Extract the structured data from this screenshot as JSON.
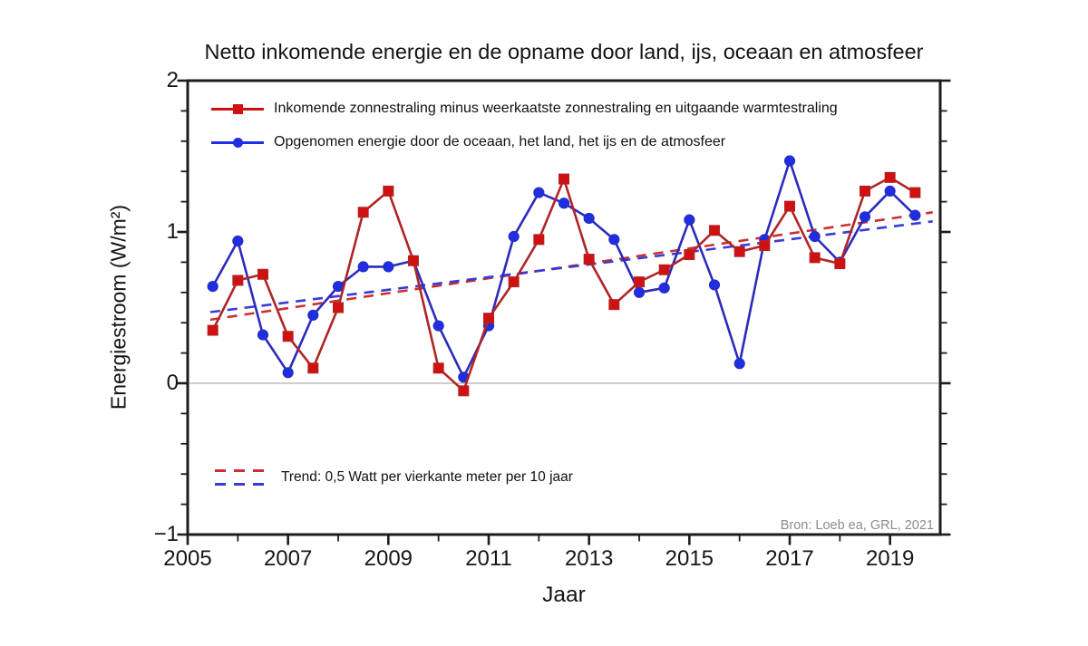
{
  "chart_data": {
    "type": "line",
    "title": "Netto inkomende energie en de opname door land, ijs, oceaan en atmosfeer",
    "xlabel": "Jaar",
    "ylabel": "Energiestroom (W/m²)",
    "xlim": [
      2005,
      2020
    ],
    "ylim": [
      -1,
      2
    ],
    "x_major_ticks": [
      2005,
      2007,
      2009,
      2011,
      2013,
      2015,
      2017,
      2019
    ],
    "x_tick_labels": [
      "2005",
      "2007",
      "2009",
      "2011",
      "2013",
      "2015",
      "2017",
      "2019"
    ],
    "x_minor_ticks": [
      2006,
      2008,
      2010,
      2012,
      2014,
      2016,
      2018
    ],
    "y_major_ticks": [
      -1,
      0,
      1,
      2
    ],
    "y_tick_labels": [
      "−1",
      "0",
      "1",
      "2"
    ],
    "y_minor_step": 0.2,
    "zero_line": true,
    "grid": "off",
    "legend_position": "top-left-inside",
    "x": [
      2005.5,
      2006.0,
      2006.5,
      2007.0,
      2007.5,
      2008.0,
      2008.5,
      2009.0,
      2009.5,
      2010.0,
      2010.5,
      2011.0,
      2011.5,
      2012.0,
      2012.5,
      2013.0,
      2013.5,
      2014.0,
      2014.5,
      2015.0,
      2015.5,
      2016.0,
      2016.5,
      2017.0,
      2017.5,
      2018.0,
      2018.5,
      2019.0,
      2019.5
    ],
    "series": [
      {
        "name": "Inkomende zonnestraling minus weerkaatste zonnestraling en uitgaande warmtestraling",
        "marker": "square",
        "line_color": "#b02525",
        "marker_color": "#cf1111",
        "values": [
          0.35,
          0.68,
          0.72,
          0.31,
          0.1,
          0.5,
          1.13,
          1.27,
          0.81,
          0.1,
          -0.05,
          0.43,
          0.67,
          0.95,
          1.35,
          0.82,
          0.52,
          0.67,
          0.75,
          0.85,
          1.01,
          0.87,
          0.91,
          1.17,
          0.83,
          0.79,
          1.27,
          1.36,
          1.26
        ]
      },
      {
        "name": "Opgenomen energie door de oceaan, het land, het ijs en de atmosfeer",
        "marker": "circle",
        "line_color": "#2b2bbd",
        "marker_color": "#1e2ee0",
        "values": [
          0.64,
          0.94,
          0.32,
          0.07,
          0.45,
          0.64,
          0.77,
          0.77,
          0.81,
          0.38,
          0.04,
          0.38,
          0.97,
          1.26,
          1.19,
          1.09,
          0.95,
          0.6,
          0.63,
          1.08,
          0.65,
          0.13,
          0.95,
          1.47,
          0.97,
          0.8,
          1.1,
          1.27,
          1.11
        ]
      }
    ],
    "trend": {
      "label": "Trend: 0,5 Watt per vierkante meter per 10 jaar",
      "value_per_decade": "0,5",
      "lines": [
        {
          "name": "trend-straling",
          "color": "#cc2f2f",
          "x": [
            2005.45,
            2019.85
          ],
          "y": [
            0.42,
            1.13
          ]
        },
        {
          "name": "trend-opname",
          "color": "#3a3ad6",
          "x": [
            2005.45,
            2019.85
          ],
          "y": [
            0.47,
            1.07
          ]
        }
      ]
    },
    "source": "Bron: Loeb ea, GRL, 2021",
    "axis_color": "#1c1c1c",
    "zero_line_color": "#bdbdbd"
  }
}
